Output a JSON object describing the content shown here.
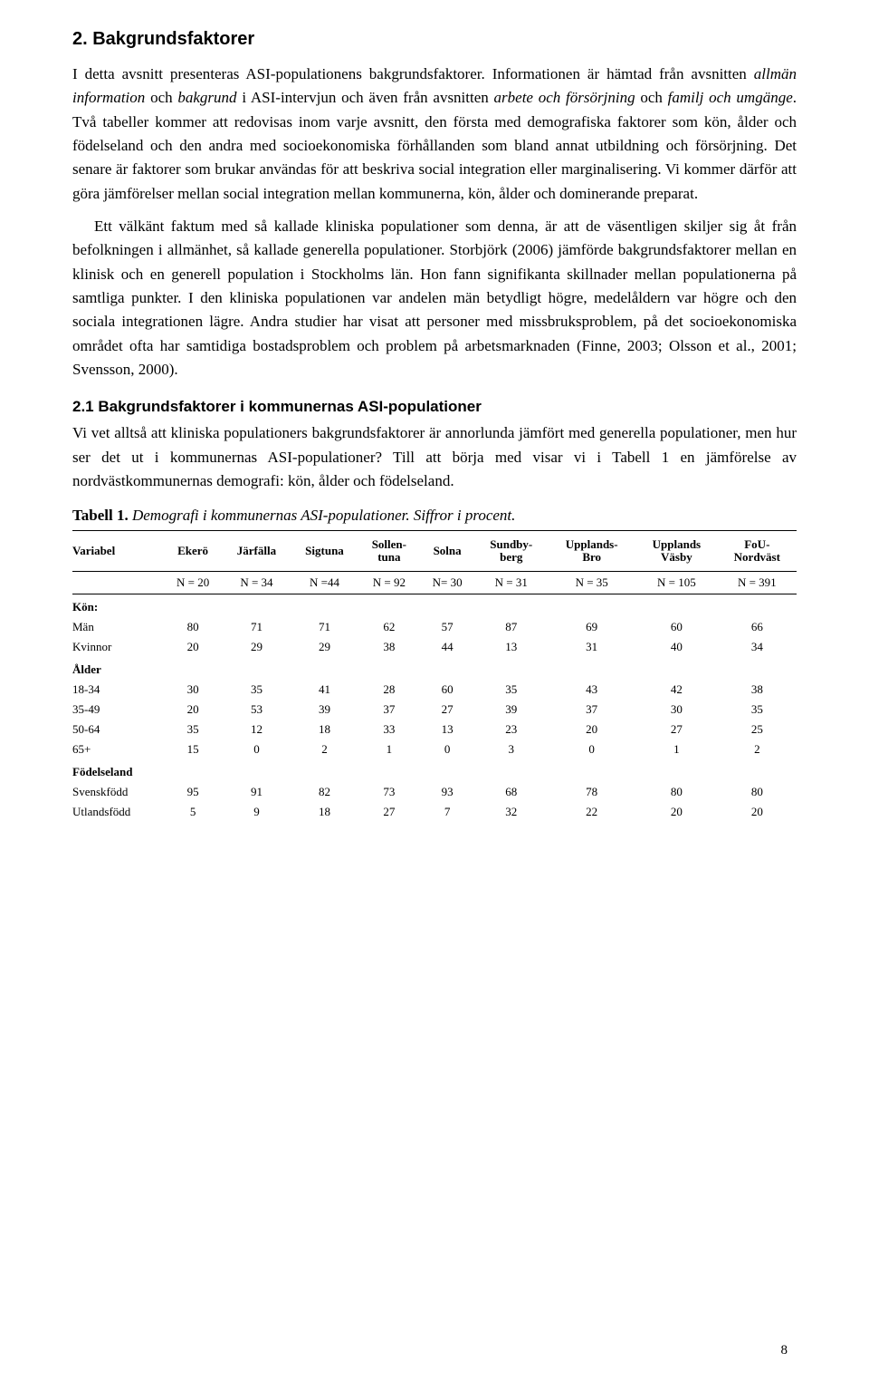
{
  "section": {
    "title": "2. Bakgrundsfaktorer",
    "para1_a": "I detta avsnitt presenteras ASI-populationens bakgrundsfaktorer. Informationen är hämtad från avsnitten ",
    "para1_b": "allmän information",
    "para1_c": " och ",
    "para1_d": "bakgrund",
    "para1_e": " i ASI-intervjun och även från avsnitten ",
    "para1_f": "arbete och försörjning",
    "para1_g": " och ",
    "para1_h": "familj och umgänge",
    "para1_i": ". Två tabeller kommer att redovisas inom varje avsnitt, den första med demografiska faktorer som kön, ålder och födelseland och den andra med socioekonomiska förhållanden som bland annat utbildning och försörjning. Det senare är faktorer som brukar användas för att beskriva social integration eller marginalisering. Vi kommer därför att göra jämförelser mellan social integration mellan kommunerna, kön, ålder och dominerande preparat.",
    "para2": "Ett välkänt faktum med så kallade kliniska populationer som denna, är att de väsentligen skiljer sig åt från befolkningen i allmänhet, så kallade generella populationer. Storbjörk (2006) jämförde bakgrundsfaktorer mellan en klinisk och en generell population i Stockholms län. Hon fann signifikanta skillnader mellan populationerna på samtliga punkter. I den kliniska populationen var andelen män betydligt högre, medelåldern var högre och den sociala integrationen lägre. Andra studier har visat att personer med missbruksproblem, på det socioekonomiska området ofta har samtidiga bostadsproblem och problem på arbetsmarknaden (Finne, 2003; Olsson et al., 2001; Svensson, 2000)."
  },
  "subsection": {
    "title": "2.1 Bakgrundsfaktorer i kommunernas ASI-populationer",
    "para": "Vi vet alltså att kliniska populationers bakgrundsfaktorer är annorlunda jämfört med generella populationer, men hur ser det ut i kommunernas ASI-populationer? Till att börja med visar vi i Tabell 1 en jämförelse av nordvästkommunernas demografi: kön, ålder och födelseland."
  },
  "table": {
    "label_bold": "Tabell 1.",
    "label_italic": " Demografi i kommunernas ASI-populationer. Siffror i procent.",
    "var_col": "Variabel",
    "columns": [
      "Ekerö",
      "Järfälla",
      "Sigtuna",
      "Sollen-\ntuna",
      "Solna",
      "Sundby-\nberg",
      "Upplands-\nBro",
      "Upplands\nVäsby",
      "FoU-\nNordväst"
    ],
    "n_row": [
      "N = 20",
      "N = 34",
      "N =44",
      "N = 92",
      "N= 30",
      "N = 31",
      "N = 35",
      "N = 105",
      "N = 391"
    ],
    "groups": [
      {
        "name": "Kön:",
        "rows": [
          {
            "label": "Män",
            "vals": [
              80,
              71,
              71,
              62,
              57,
              87,
              69,
              60,
              66
            ]
          },
          {
            "label": "Kvinnor",
            "vals": [
              20,
              29,
              29,
              38,
              44,
              13,
              31,
              40,
              34
            ]
          }
        ]
      },
      {
        "name": "Ålder",
        "rows": [
          {
            "label": "18-34",
            "vals": [
              30,
              35,
              41,
              28,
              60,
              35,
              43,
              42,
              38
            ]
          },
          {
            "label": "35-49",
            "vals": [
              20,
              53,
              39,
              37,
              27,
              39,
              37,
              30,
              35
            ]
          },
          {
            "label": "50-64",
            "vals": [
              35,
              12,
              18,
              33,
              13,
              23,
              20,
              27,
              25
            ]
          },
          {
            "label": "65+",
            "vals": [
              15,
              0,
              2,
              1,
              0,
              3,
              0,
              1,
              2
            ]
          }
        ]
      },
      {
        "name": "Födelseland",
        "rows": [
          {
            "label": "Svenskfödd",
            "vals": [
              95,
              91,
              82,
              73,
              93,
              68,
              78,
              80,
              80
            ]
          },
          {
            "label": "Utlandsfödd",
            "vals": [
              5,
              9,
              18,
              27,
              7,
              32,
              22,
              20,
              20
            ]
          }
        ]
      }
    ]
  },
  "page_number": "8"
}
